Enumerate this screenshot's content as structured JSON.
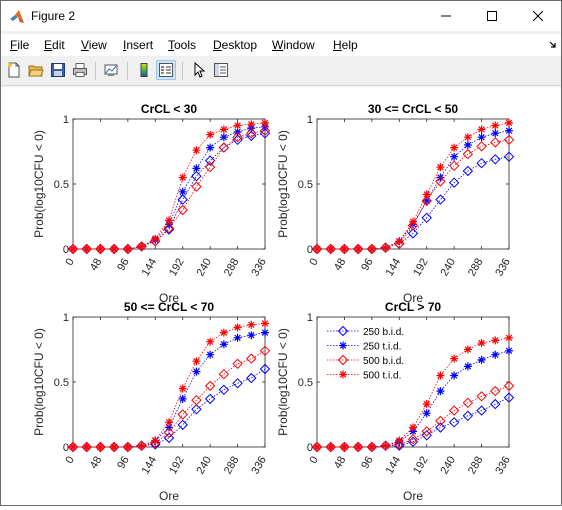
{
  "window": {
    "title": "Figure 2"
  },
  "menu": [
    "File",
    "Edit",
    "View",
    "Insert",
    "Tools",
    "Desktop",
    "Window",
    "Help"
  ],
  "menu_underline": [
    "F",
    "E",
    "V",
    "I",
    "T",
    "D",
    "W",
    "H"
  ],
  "icons": {
    "app": "matlab-logo-icon",
    "minimize": "minimize-icon",
    "maximize": "maximize-icon",
    "close": "close-icon",
    "toolbar": [
      "new-figure-icon",
      "open-file-icon",
      "save-icon",
      "print-icon",
      "link-plot-icon",
      "colorbar-icon",
      "legend-icon",
      "pointer-icon",
      "property-inspector-icon"
    ]
  },
  "colors": {
    "blue": "#0000ff",
    "red": "#ff0000"
  },
  "chart_data": [
    {
      "type": "line",
      "title": "CrCL < 30",
      "xlabel": "Ore",
      "ylabel": "Prob(log10CFU < 0)",
      "xticks": [
        "0",
        "48",
        "96",
        "144",
        "192",
        "240",
        "288",
        "336"
      ],
      "yticks": [
        "0",
        "0.5",
        "1"
      ],
      "xlim": [
        0,
        336
      ],
      "ylim": [
        0,
        1
      ],
      "x": [
        0,
        24,
        48,
        72,
        96,
        120,
        144,
        168,
        192,
        216,
        240,
        264,
        288,
        312,
        336
      ],
      "series": [
        {
          "id": "250bid",
          "color": "#0000ff",
          "marker": "diamond",
          "values": [
            0,
            0,
            0,
            0,
            0,
            0.02,
            0.06,
            0.15,
            0.38,
            0.56,
            0.68,
            0.78,
            0.84,
            0.87,
            0.89
          ]
        },
        {
          "id": "250tid",
          "color": "#0000ff",
          "marker": "star",
          "values": [
            0,
            0,
            0,
            0,
            0,
            0.02,
            0.07,
            0.19,
            0.44,
            0.62,
            0.78,
            0.86,
            0.9,
            0.93,
            0.94
          ]
        },
        {
          "id": "500bid",
          "color": "#ff0000",
          "marker": "diamond",
          "values": [
            0,
            0,
            0,
            0,
            0,
            0.02,
            0.06,
            0.16,
            0.3,
            0.48,
            0.63,
            0.78,
            0.86,
            0.89,
            0.91
          ]
        },
        {
          "id": "500tid",
          "color": "#ff0000",
          "marker": "star",
          "values": [
            0,
            0,
            0,
            0,
            0,
            0.02,
            0.08,
            0.22,
            0.55,
            0.76,
            0.88,
            0.92,
            0.95,
            0.96,
            0.97
          ]
        }
      ]
    },
    {
      "type": "line",
      "title": "30 <= CrCL < 50",
      "xlabel": "Ore",
      "ylabel": "Prob(log10CFU < 0)",
      "xticks": [
        "0",
        "48",
        "96",
        "144",
        "192",
        "240",
        "288",
        "336"
      ],
      "yticks": [
        "0",
        "0.5",
        "1"
      ],
      "xlim": [
        0,
        336
      ],
      "ylim": [
        0,
        1
      ],
      "x": [
        0,
        24,
        48,
        72,
        96,
        120,
        144,
        168,
        192,
        216,
        240,
        264,
        288,
        312,
        336
      ],
      "series": [
        {
          "id": "250bid",
          "color": "#0000ff",
          "marker": "diamond",
          "values": [
            0,
            0,
            0,
            0,
            0,
            0.01,
            0.04,
            0.12,
            0.24,
            0.38,
            0.51,
            0.6,
            0.66,
            0.69,
            0.71
          ]
        },
        {
          "id": "250tid",
          "color": "#0000ff",
          "marker": "star",
          "values": [
            0,
            0,
            0,
            0,
            0,
            0.01,
            0.06,
            0.19,
            0.37,
            0.55,
            0.71,
            0.8,
            0.86,
            0.89,
            0.91
          ]
        },
        {
          "id": "500bid",
          "color": "#ff0000",
          "marker": "diamond",
          "values": [
            0,
            0,
            0,
            0,
            0,
            0.01,
            0.04,
            0.18,
            0.37,
            0.52,
            0.64,
            0.73,
            0.79,
            0.82,
            0.84
          ]
        },
        {
          "id": "500tid",
          "color": "#ff0000",
          "marker": "star",
          "values": [
            0,
            0,
            0,
            0,
            0,
            0.01,
            0.06,
            0.21,
            0.42,
            0.63,
            0.78,
            0.86,
            0.92,
            0.95,
            0.97
          ]
        }
      ]
    },
    {
      "type": "line",
      "title": "50 <= CrCL < 70",
      "xlabel": "Ore",
      "ylabel": "Prob(log10CFU < 0)",
      "xticks": [
        "0",
        "48",
        "96",
        "144",
        "192",
        "240",
        "288",
        "336"
      ],
      "yticks": [
        "0",
        "0.5",
        "1"
      ],
      "xlim": [
        0,
        336
      ],
      "ylim": [
        0,
        1
      ],
      "x": [
        0,
        24,
        48,
        72,
        96,
        120,
        144,
        168,
        192,
        216,
        240,
        264,
        288,
        312,
        336
      ],
      "series": [
        {
          "id": "250bid",
          "color": "#0000ff",
          "marker": "diamond",
          "values": [
            0,
            0,
            0,
            0,
            0,
            0.01,
            0.02,
            0.07,
            0.17,
            0.29,
            0.37,
            0.44,
            0.49,
            0.53,
            0.6
          ]
        },
        {
          "id": "250tid",
          "color": "#0000ff",
          "marker": "star",
          "values": [
            0,
            0,
            0,
            0,
            0,
            0.01,
            0.05,
            0.15,
            0.37,
            0.58,
            0.71,
            0.79,
            0.84,
            0.86,
            0.88
          ]
        },
        {
          "id": "500bid",
          "color": "#ff0000",
          "marker": "diamond",
          "values": [
            0,
            0,
            0,
            0,
            0,
            0.01,
            0.03,
            0.11,
            0.25,
            0.36,
            0.47,
            0.56,
            0.64,
            0.68,
            0.74
          ]
        },
        {
          "id": "500tid",
          "color": "#ff0000",
          "marker": "star",
          "values": [
            0,
            0,
            0,
            0,
            0,
            0.01,
            0.05,
            0.19,
            0.45,
            0.66,
            0.81,
            0.88,
            0.92,
            0.94,
            0.95
          ]
        }
      ]
    },
    {
      "type": "line",
      "title": "CrCL > 70",
      "xlabel": "Ore",
      "ylabel": "Prob(log10CFU < 0)",
      "xticks": [
        "0",
        "48",
        "96",
        "144",
        "192",
        "240",
        "288",
        "336"
      ],
      "yticks": [
        "0",
        "0.5",
        "1"
      ],
      "xlim": [
        0,
        336
      ],
      "ylim": [
        0,
        1
      ],
      "x": [
        0,
        24,
        48,
        72,
        96,
        120,
        144,
        168,
        192,
        216,
        240,
        264,
        288,
        312,
        336
      ],
      "legend": {
        "location": "top-left",
        "entries": [
          "250 b.i.d.",
          "250 t.i.d.",
          "500 b.i.d.",
          "500 t.i.d."
        ]
      },
      "series": [
        {
          "id": "250bid",
          "name": "250 b.i.d.",
          "color": "#0000ff",
          "marker": "diamond",
          "values": [
            0,
            0,
            0,
            0,
            0,
            0.01,
            0.01,
            0.04,
            0.09,
            0.15,
            0.19,
            0.24,
            0.28,
            0.33,
            0.38
          ]
        },
        {
          "id": "250tid",
          "name": "250 t.i.d.",
          "color": "#0000ff",
          "marker": "star",
          "values": [
            0,
            0,
            0,
            0,
            0,
            0.01,
            0.04,
            0.12,
            0.26,
            0.43,
            0.55,
            0.62,
            0.67,
            0.71,
            0.74
          ]
        },
        {
          "id": "500bid",
          "name": "500 b.i.d.",
          "color": "#ff0000",
          "marker": "diamond",
          "values": [
            0,
            0,
            0,
            0,
            0,
            0.01,
            0.02,
            0.06,
            0.12,
            0.2,
            0.28,
            0.34,
            0.39,
            0.43,
            0.47
          ]
        },
        {
          "id": "500tid",
          "name": "500 t.i.d.",
          "color": "#ff0000",
          "marker": "star",
          "values": [
            0,
            0,
            0,
            0,
            0,
            0.01,
            0.05,
            0.15,
            0.33,
            0.55,
            0.68,
            0.75,
            0.8,
            0.82,
            0.84
          ]
        }
      ]
    }
  ]
}
